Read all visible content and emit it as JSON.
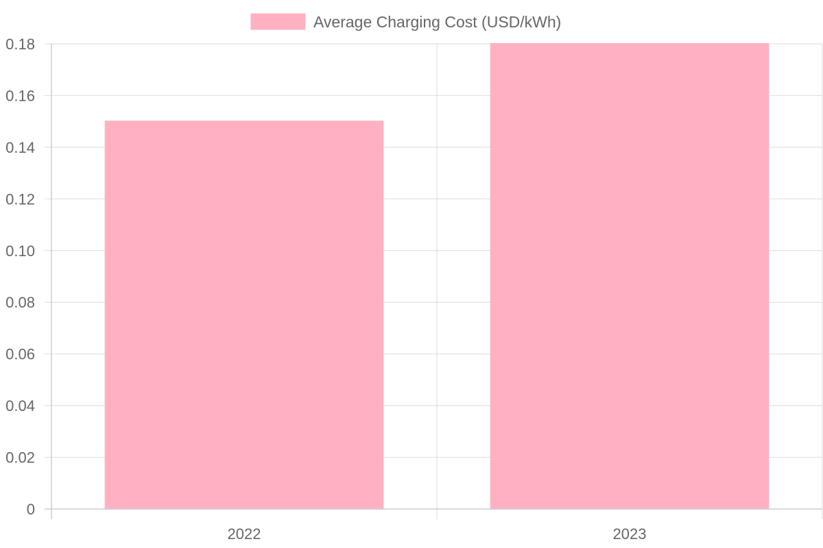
{
  "chart_data": {
    "type": "bar",
    "categories": [
      "2022",
      "2023"
    ],
    "series": [
      {
        "name": "Average Charging Cost (USD/kWh)",
        "values": [
          0.15,
          0.18
        ],
        "color": "#ffb1c1"
      }
    ],
    "yticks": [
      "0",
      "0.02",
      "0.04",
      "0.06",
      "0.08",
      "0.10",
      "0.12",
      "0.14",
      "0.16",
      "0.18"
    ],
    "ylim": [
      0,
      0.18
    ],
    "grid": true,
    "legend_position": "top"
  }
}
